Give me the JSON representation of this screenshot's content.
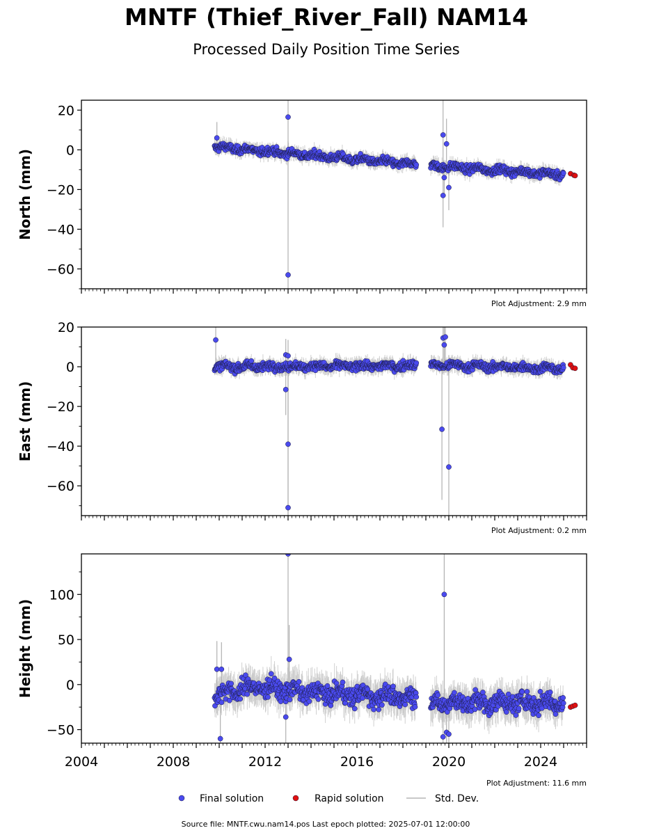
{
  "title": "MNTF (Thief_River_Fall) NAM14",
  "subtitle": "Processed Daily Position Time Series",
  "source": "Source file: MNTF.cwu.nam14.pos  Last epoch plotted: 2025-07-01 12:00:00",
  "legend": {
    "final": "Final solution",
    "rapid": "Rapid solution",
    "std": "Std. Dev."
  },
  "colors": {
    "final": "#4a4aee",
    "rapid": "#e01010",
    "std": "#c8c8c8",
    "edge": "#1a1a3a"
  },
  "chart_data": [
    {
      "type": "scatter",
      "component": "north",
      "ylabel": "North (mm)",
      "adjustment": "Plot Adjustment: 2.9 mm",
      "xlim": [
        2004.0,
        2026.0
      ],
      "ylim": [
        -70,
        25
      ],
      "yticks": [
        20,
        0,
        -20,
        -40,
        -60
      ],
      "ytick_labels": [
        "20",
        "0",
        "−20",
        "−40",
        "−60"
      ],
      "series": [
        {
          "name": "Final solution",
          "trend": [
            [
              2009.8,
              1.5
            ],
            [
              2018.6,
              -7.5
            ],
            [
              2019.2,
              -8.0
            ],
            [
              2025.0,
              -12.5
            ]
          ],
          "noise": 1.5
        },
        {
          "name": "Rapid solution",
          "points": [
            [
              2025.3,
              -12.0
            ],
            [
              2025.45,
              -12.8
            ],
            [
              2025.5,
              -13.0
            ]
          ]
        }
      ],
      "outliers": [
        [
          2009.9,
          6
        ],
        [
          2013.0,
          16.5
        ],
        [
          2013.0,
          -63
        ],
        [
          2019.75,
          7.5
        ],
        [
          2019.9,
          3
        ],
        [
          2019.75,
          -23
        ],
        [
          2019.8,
          -14
        ],
        [
          2020.0,
          -19
        ]
      ],
      "data_gap": [
        2018.6,
        2019.2
      ]
    },
    {
      "type": "scatter",
      "component": "east",
      "ylabel": "East (mm)",
      "adjustment": "Plot Adjustment: 0.2 mm",
      "xlim": [
        2004.0,
        2026.0
      ],
      "ylim": [
        -75,
        20
      ],
      "yticks": [
        20,
        0,
        -20,
        -40,
        -60
      ],
      "ytick_labels": [
        "20",
        "0",
        "−20",
        "−40",
        "−60"
      ],
      "series": [
        {
          "name": "Final solution",
          "trend": [
            [
              2009.8,
              0.0
            ],
            [
              2018.6,
              0.5
            ],
            [
              2019.2,
              1.0
            ],
            [
              2025.0,
              -1.0
            ]
          ],
          "noise": 1.6
        },
        {
          "name": "Rapid solution",
          "points": [
            [
              2025.3,
              1.0
            ],
            [
              2025.4,
              -0.5
            ],
            [
              2025.5,
              -0.8
            ]
          ]
        }
      ],
      "outliers": [
        [
          2009.85,
          13.5
        ],
        [
          2012.9,
          6
        ],
        [
          2013.0,
          5.5
        ],
        [
          2012.9,
          -11.5
        ],
        [
          2013.0,
          -39
        ],
        [
          2013.0,
          -71
        ],
        [
          2019.75,
          14.5
        ],
        [
          2019.85,
          15
        ],
        [
          2019.8,
          11
        ],
        [
          2019.7,
          -31.5
        ],
        [
          2020.0,
          -50.5
        ]
      ],
      "data_gap": [
        2018.6,
        2019.2
      ]
    },
    {
      "type": "scatter",
      "component": "height",
      "ylabel": "Height (mm)",
      "adjustment": "Plot Adjustment: 11.6 mm",
      "xlabel": "",
      "xlim": [
        2004.0,
        2026.0
      ],
      "ylim": [
        -65,
        145
      ],
      "yticks": [
        100,
        50,
        0,
        -50
      ],
      "ytick_labels": [
        "100",
        "50",
        "0",
        "−50"
      ],
      "xticks": [
        2004,
        2008,
        2012,
        2016,
        2020,
        2024
      ],
      "xtick_labels": [
        "2004",
        "2008",
        "2012",
        "2016",
        "2020",
        "2024"
      ],
      "series": [
        {
          "name": "Final solution",
          "trend": [
            [
              2009.8,
              -12.0
            ],
            [
              2011.5,
              -2.0
            ],
            [
              2013.5,
              -8.0
            ],
            [
              2018.6,
              -15.0
            ],
            [
              2019.2,
              -20.0
            ],
            [
              2025.0,
              -20.0
            ]
          ],
          "noise": 8
        },
        {
          "name": "Rapid solution",
          "points": [
            [
              2025.3,
              -25.0
            ],
            [
              2025.4,
              -24.0
            ],
            [
              2025.5,
              -23.0
            ]
          ]
        }
      ],
      "outliers": [
        [
          2009.9,
          17
        ],
        [
          2010.1,
          17
        ],
        [
          2010.05,
          -60
        ],
        [
          2013.0,
          145
        ],
        [
          2013.05,
          28
        ],
        [
          2012.9,
          -36
        ],
        [
          2019.8,
          100
        ],
        [
          2019.75,
          -58
        ],
        [
          2019.9,
          -53
        ],
        [
          2020.0,
          -55
        ]
      ],
      "data_gap": [
        2018.6,
        2019.2
      ]
    }
  ]
}
